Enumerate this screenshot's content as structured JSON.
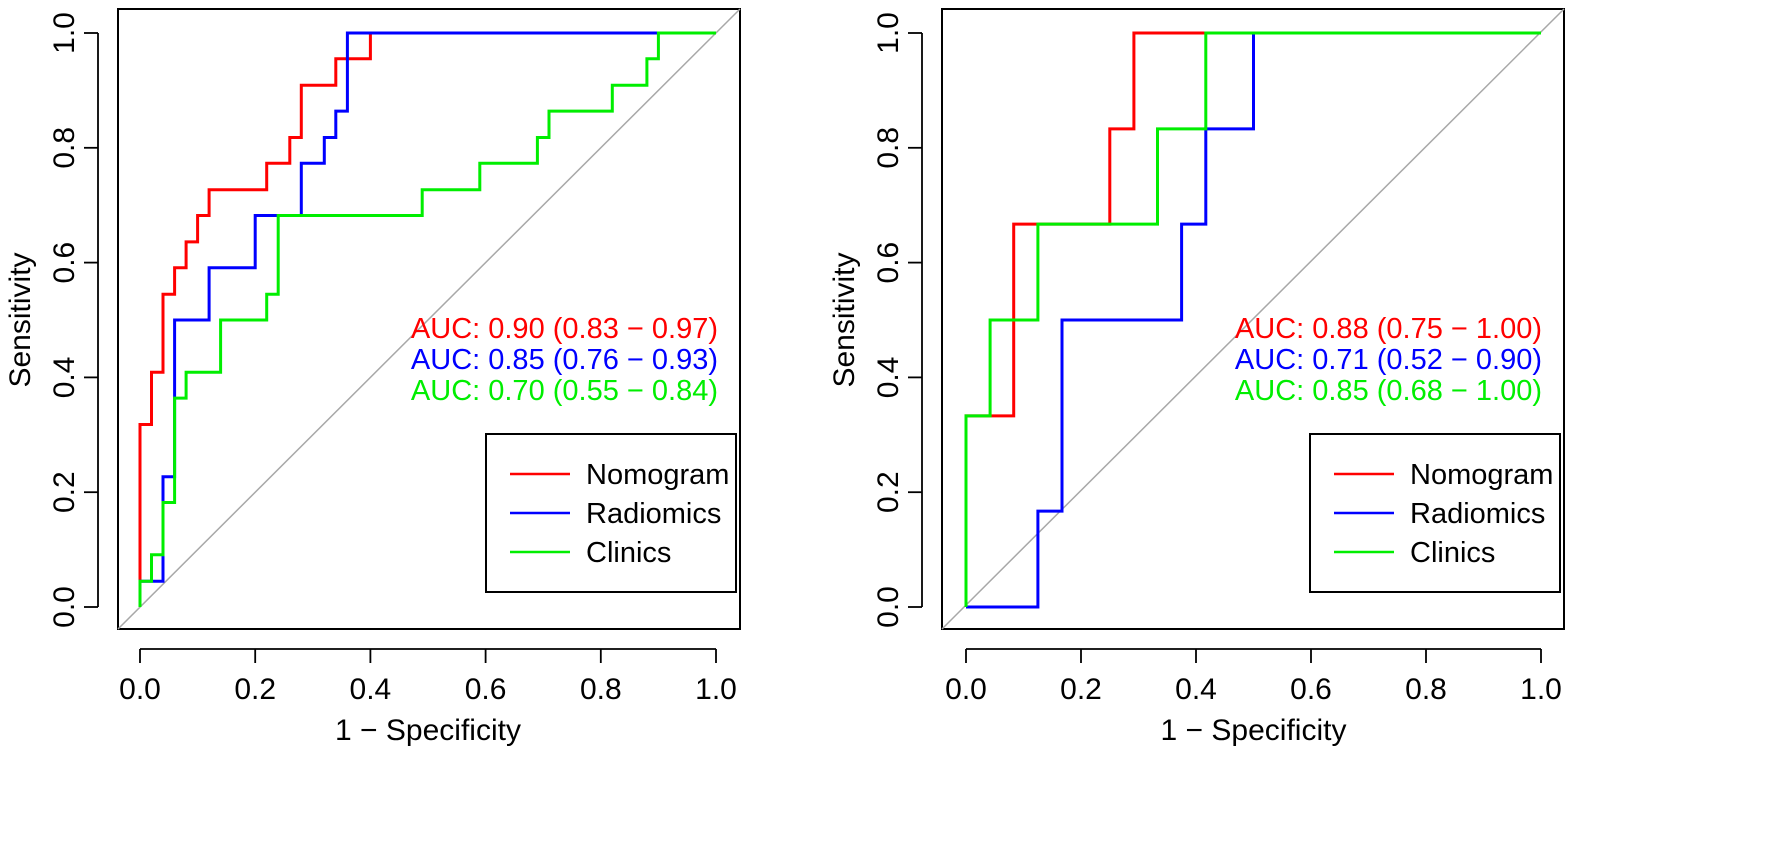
{
  "chart_data": [
    {
      "type": "line",
      "title": "",
      "xlabel": "1 − Specificity",
      "ylabel": "Sensitivity",
      "xlim": [
        0,
        1
      ],
      "ylim": [
        0,
        1
      ],
      "xticks": [
        "0.0",
        "0.2",
        "0.4",
        "0.6",
        "0.8",
        "1.0"
      ],
      "yticks": [
        "0.0",
        "0.2",
        "0.4",
        "0.6",
        "0.8",
        "1.0"
      ],
      "legend_position": "bottom-right",
      "diagonal_reference": true,
      "series": [
        {
          "name": "Nomogram",
          "color": "#ff0000",
          "auc_label": "AUC: 0.90 (0.83 − 0.97)",
          "x": [
            0,
            0,
            0,
            0.02,
            0.02,
            0.04,
            0.04,
            0.06,
            0.06,
            0.08,
            0.08,
            0.1,
            0.1,
            0.12,
            0.12,
            0.22,
            0.22,
            0.26,
            0.26,
            0.28,
            0.28,
            0.34,
            0.34,
            0.38,
            0.38,
            0.4,
            0.4,
            1.0
          ],
          "y": [
            0,
            0.045,
            0.318,
            0.318,
            0.409,
            0.409,
            0.545,
            0.545,
            0.591,
            0.591,
            0.636,
            0.636,
            0.682,
            0.682,
            0.727,
            0.727,
            0.773,
            0.773,
            0.818,
            0.818,
            0.909,
            0.909,
            0.955,
            0.955,
            0.955,
            0.955,
            1.0,
            1.0
          ]
        },
        {
          "name": "Radiomics",
          "color": "#0000ff",
          "auc_label": "AUC: 0.85 (0.76 − 0.93)",
          "x": [
            0,
            0,
            0.04,
            0.04,
            0.04,
            0.06,
            0.06,
            0.12,
            0.12,
            0.2,
            0.2,
            0.28,
            0.28,
            0.32,
            0.32,
            0.34,
            0.34,
            0.36,
            0.36,
            1.0
          ],
          "y": [
            0,
            0.045,
            0.045,
            0.227,
            0.227,
            0.227,
            0.5,
            0.5,
            0.591,
            0.591,
            0.682,
            0.682,
            0.773,
            0.773,
            0.818,
            0.818,
            0.864,
            0.864,
            1.0,
            1.0
          ]
        },
        {
          "name": "Clinics",
          "color": "#00ee00",
          "auc_label": "AUC: 0.70 (0.55 − 0.84)",
          "x": [
            0,
            0,
            0.02,
            0.02,
            0.04,
            0.04,
            0.06,
            0.06,
            0.08,
            0.08,
            0.14,
            0.14,
            0.22,
            0.22,
            0.24,
            0.24,
            0.49,
            0.49,
            0.59,
            0.59,
            0.69,
            0.69,
            0.71,
            0.71,
            0.82,
            0.82,
            0.88,
            0.88,
            0.9,
            0.9,
            1.0
          ],
          "y": [
            0,
            0.045,
            0.045,
            0.091,
            0.091,
            0.182,
            0.182,
            0.364,
            0.364,
            0.409,
            0.409,
            0.5,
            0.5,
            0.545,
            0.545,
            0.682,
            0.682,
            0.727,
            0.727,
            0.773,
            0.773,
            0.818,
            0.818,
            0.864,
            0.864,
            0.909,
            0.909,
            0.955,
            0.955,
            1.0,
            1.0
          ]
        }
      ]
    },
    {
      "type": "line",
      "title": "",
      "xlabel": "1 − Specificity",
      "ylabel": "Sensitivity",
      "xlim": [
        0,
        1
      ],
      "ylim": [
        0,
        1
      ],
      "xticks": [
        "0.0",
        "0.2",
        "0.4",
        "0.6",
        "0.8",
        "1.0"
      ],
      "yticks": [
        "0.0",
        "0.2",
        "0.4",
        "0.6",
        "0.8",
        "1.0"
      ],
      "legend_position": "bottom-right",
      "diagonal_reference": true,
      "series": [
        {
          "name": "Nomogram",
          "color": "#ff0000",
          "auc_label": "AUC: 0.88 (0.75 − 1.00)",
          "x": [
            0,
            0,
            0.083,
            0.083,
            0.25,
            0.25,
            0.292,
            0.292,
            1.0
          ],
          "y": [
            0,
            0.333,
            0.333,
            0.667,
            0.667,
            0.833,
            0.833,
            1.0,
            1.0
          ]
        },
        {
          "name": "Radiomics",
          "color": "#0000ff",
          "auc_label": "AUC: 0.71 (0.52 − 0.90)",
          "x": [
            0,
            0.125,
            0.125,
            0.167,
            0.167,
            0.375,
            0.375,
            0.417,
            0.417,
            0.5,
            0.5,
            1.0
          ],
          "y": [
            0,
            0,
            0.167,
            0.167,
            0.5,
            0.5,
            0.667,
            0.667,
            0.833,
            0.833,
            1.0,
            1.0
          ]
        },
        {
          "name": "Clinics",
          "color": "#00ee00",
          "auc_label": "AUC: 0.85 (0.68 − 1.00)",
          "x": [
            0,
            0,
            0.042,
            0.042,
            0.125,
            0.125,
            0.333,
            0.333,
            0.417,
            0.417,
            1.0
          ],
          "y": [
            0,
            0.333,
            0.333,
            0.5,
            0.5,
            0.667,
            0.667,
            0.833,
            0.833,
            1.0,
            1.0
          ]
        }
      ]
    }
  ]
}
